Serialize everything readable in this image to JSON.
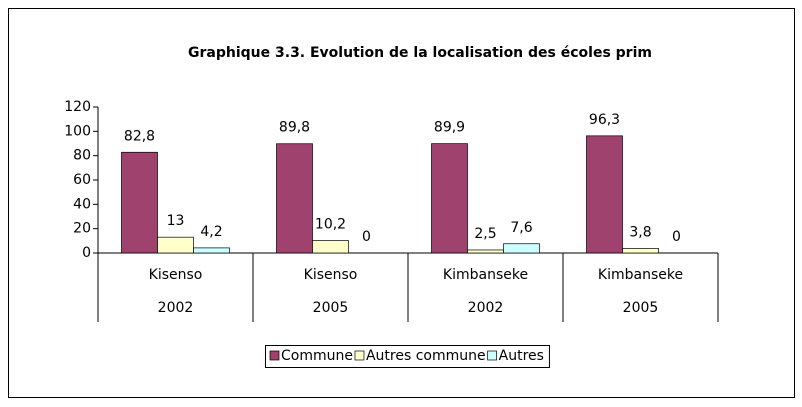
{
  "chart_data": {
    "type": "bar",
    "title": "Graphique  3.3.  Evolution  de  la  localisation  des  écoles  prim",
    "categories": [
      "Kisenso",
      "Kisenso",
      "Kimbanseke",
      "Kimbanseke"
    ],
    "years": [
      "2002",
      "2005",
      "2002",
      "2005"
    ],
    "series": [
      {
        "name": "Commune",
        "color": "#a0426e",
        "values": [
          82.8,
          89.8,
          89.9,
          96.3
        ],
        "value_labels": [
          "82,8",
          "89,8",
          "89,9",
          "96,3"
        ]
      },
      {
        "name": "Autres commune",
        "color": "#ffffcc",
        "values": [
          13,
          10.2,
          2.5,
          3.8
        ],
        "value_labels": [
          "13",
          "10,2",
          "2,5",
          "3,8"
        ]
      },
      {
        "name": "Autres",
        "color": "#ccffff",
        "values": [
          4.2,
          0,
          7.6,
          0
        ],
        "value_labels": [
          "4,2",
          "0",
          "7,6",
          "0"
        ]
      }
    ],
    "ylim": [
      0,
      120
    ],
    "yticks": [
      0,
      20,
      40,
      60,
      80,
      100,
      120
    ]
  }
}
